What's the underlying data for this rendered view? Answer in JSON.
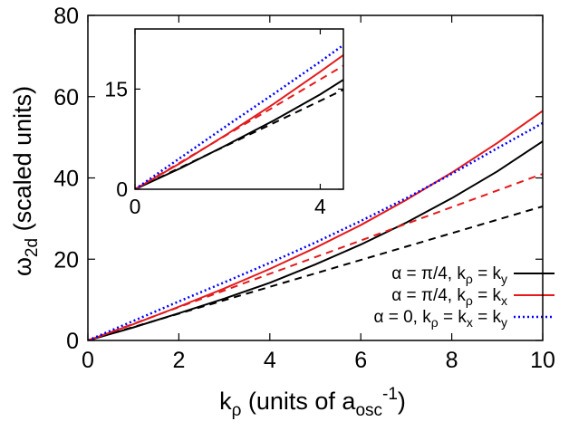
{
  "chart_data": {
    "type": "line",
    "xlabel": "k_ρ (units of a_osc^-1)",
    "ylabel": "ω_2d (scaled units)",
    "xlim": [
      0,
      10
    ],
    "ylim": [
      0,
      80
    ],
    "x_ticks": [
      "0",
      "2",
      "4",
      "6",
      "8",
      "10"
    ],
    "y_ticks": [
      "0",
      "20",
      "40",
      "60",
      "80"
    ],
    "grid": false,
    "legend_position": "bottom-right",
    "legend": [
      {
        "name": "α = π/4, k_ρ = k_y",
        "color": "#000000",
        "dash": "solid"
      },
      {
        "name": "α = π/4, k_ρ = k_x",
        "color": "#e41a1c",
        "dash": "solid"
      },
      {
        "name": "α = 0, k_ρ = k_x = k_y",
        "color": "#0000ff",
        "dash": "dotted"
      }
    ],
    "series": [
      {
        "name": "α = π/4, k_ρ = k_y",
        "color": "#000000",
        "dash": "solid",
        "x": [
          0,
          1,
          2,
          3,
          4,
          5,
          6,
          7,
          8,
          9,
          10
        ],
        "y": [
          0,
          3.2,
          6.7,
          10.3,
          14.2,
          18.7,
          23.6,
          29.0,
          35.0,
          41.6,
          49.0
        ]
      },
      {
        "name": "α = π/4, k_ρ = k_y (linear)",
        "color": "#000000",
        "dash": "dashed",
        "x": [
          0,
          10
        ],
        "y": [
          0,
          33
        ]
      },
      {
        "name": "α = π/4, k_ρ = k_x",
        "color": "#e41a1c",
        "dash": "solid",
        "x": [
          0,
          1,
          2,
          3,
          4,
          5,
          6,
          7,
          8,
          9,
          10
        ],
        "y": [
          0,
          4.0,
          8.3,
          12.8,
          17.6,
          22.8,
          28.4,
          34.6,
          41.3,
          48.6,
          56.5
        ]
      },
      {
        "name": "α = π/4, k_ρ = k_x (linear)",
        "color": "#e41a1c",
        "dash": "dashed",
        "x": [
          0,
          10
        ],
        "y": [
          0,
          41
        ]
      },
      {
        "name": "α = 0, k_ρ = k_x = k_y",
        "color": "#0000ff",
        "dash": "dotted",
        "x": [
          0,
          1,
          2,
          3,
          4,
          5,
          6,
          7,
          8,
          9,
          10
        ],
        "y": [
          0,
          4.8,
          9.6,
          14.3,
          19.1,
          24.1,
          29.4,
          35.0,
          41.0,
          47.3,
          53.5
        ]
      }
    ],
    "inset": {
      "xlim": [
        0,
        4.5
      ],
      "ylim": [
        0,
        24
      ],
      "x_ticks": [
        "0",
        "4"
      ],
      "y_ticks": [
        "0",
        "15"
      ],
      "series": [
        {
          "color": "#000000",
          "dash": "solid",
          "x": [
            0,
            1,
            2,
            3,
            4,
            4.5
          ],
          "y": [
            0,
            3.2,
            6.7,
            10.3,
            14.2,
            16.4
          ]
        },
        {
          "color": "#000000",
          "dash": "dashed",
          "x": [
            0,
            4.5
          ],
          "y": [
            0,
            14.9
          ]
        },
        {
          "color": "#e41a1c",
          "dash": "solid",
          "x": [
            0,
            1,
            2,
            3,
            4,
            4.5
          ],
          "y": [
            0,
            4.0,
            8.3,
            12.8,
            17.6,
            20.1
          ]
        },
        {
          "color": "#e41a1c",
          "dash": "dashed",
          "x": [
            0,
            4.5
          ],
          "y": [
            0,
            18.5
          ]
        },
        {
          "color": "#0000ff",
          "dash": "dotted",
          "x": [
            0,
            1,
            2,
            3,
            4,
            4.5
          ],
          "y": [
            0,
            4.8,
            9.6,
            14.3,
            19.1,
            21.6
          ]
        }
      ]
    }
  }
}
